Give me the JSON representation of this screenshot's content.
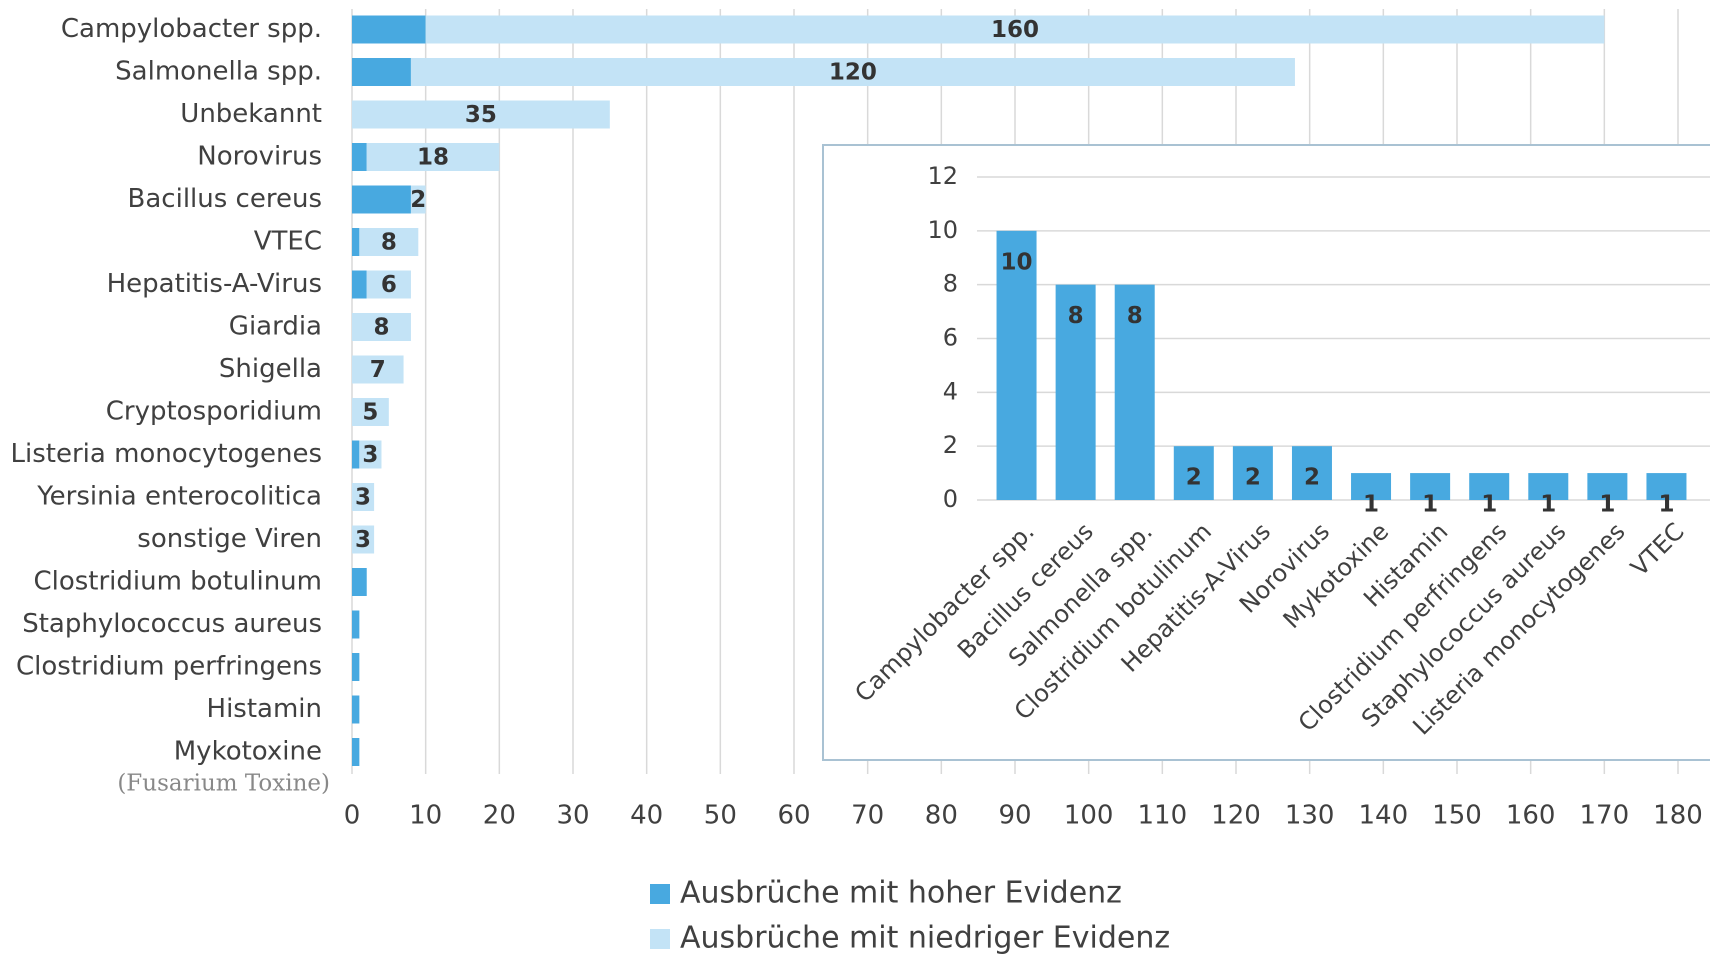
{
  "chart_data": [
    {
      "type": "bar",
      "orientation": "horizontal",
      "stacked": true,
      "categories": [
        "Campylobacter spp.",
        "Salmonella spp.",
        "Unbekannt",
        "Norovirus",
        "Bacillus cereus",
        "VTEC",
        "Hepatitis-A-Virus",
        "Giardia",
        "Shigella",
        "Cryptosporidium",
        "Listeria monocytogenes",
        "Yersinia enterocolitica",
        "sonstige Viren",
        "Clostridium botulinum",
        "Staphylococcus aureus",
        "Clostridium perfringens",
        "Histamin",
        "Mykotoxine"
      ],
      "series": [
        {
          "name": "Ausbrüche mit hoher Evidenz",
          "color": "#48a9e0",
          "values": [
            10,
            8,
            0,
            2,
            8,
            1,
            2,
            0,
            0,
            0,
            1,
            0,
            0,
            2,
            1,
            1,
            1,
            1
          ]
        },
        {
          "name": "Ausbrüche mit niedriger Evidenz",
          "color": "#c3e3f6",
          "show_labels": true,
          "values": [
            160,
            120,
            35,
            18,
            2,
            8,
            6,
            8,
            7,
            5,
            3,
            3,
            3,
            0,
            0,
            0,
            0,
            0
          ]
        }
      ],
      "annotations": [
        "(Fusarium Toxine)"
      ],
      "xlim": [
        0,
        180
      ],
      "xticks": [
        0,
        10,
        20,
        30,
        40,
        50,
        60,
        70,
        80,
        90,
        100,
        110,
        120,
        130,
        140,
        150,
        160,
        170,
        180
      ],
      "grid": true,
      "legend": "bottom"
    },
    {
      "type": "bar",
      "orientation": "vertical",
      "categories": [
        "Campylobacter spp.",
        "Bacillus cereus",
        "Salmonella spp.",
        "Clostridium botulinum",
        "Hepatitis-A-Virus",
        "Norovirus",
        "Mykotoxine",
        "Histamin",
        "Clostridium perfringens",
        "Staphylococcus aureus",
        "Listeria monocytogenes",
        "VTEC"
      ],
      "values": [
        10,
        8,
        8,
        2,
        2,
        2,
        1,
        1,
        1,
        1,
        1,
        1
      ],
      "color": "#48a9e0",
      "show_labels": true,
      "ylim": [
        0,
        12
      ],
      "yticks": [
        0,
        2,
        4,
        6,
        8,
        10,
        12
      ],
      "grid": true
    }
  ]
}
